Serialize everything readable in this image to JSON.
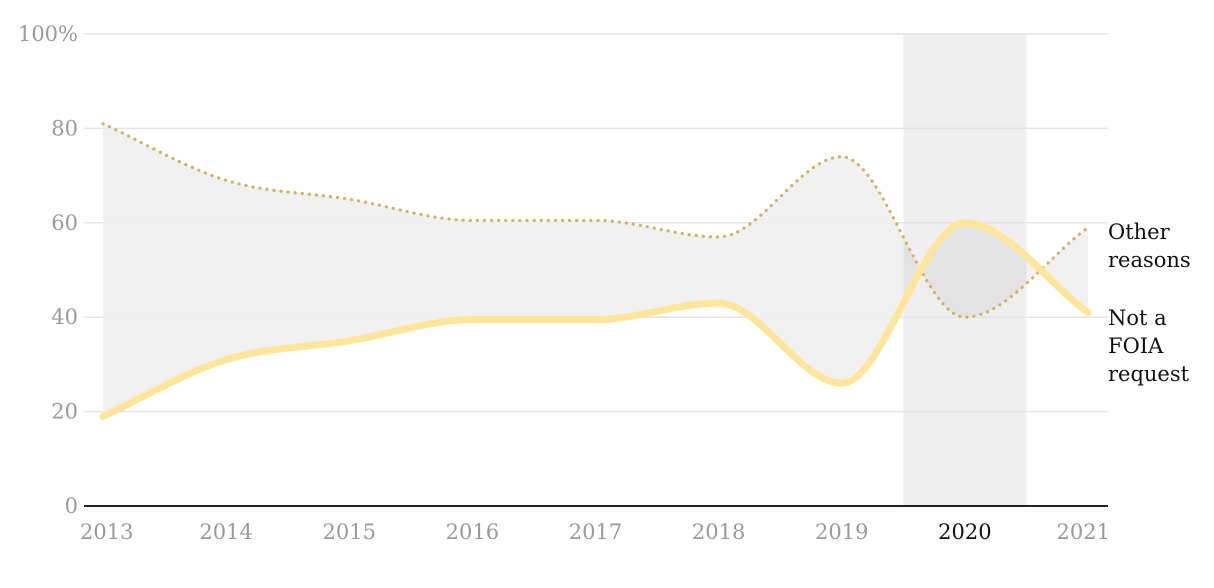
{
  "chart_data": {
    "type": "line",
    "title": "",
    "xlabel": "",
    "ylabel": "",
    "x": [
      "2013",
      "2014",
      "2015",
      "2016",
      "2017",
      "2018",
      "2019",
      "2020",
      "2021"
    ],
    "ylim": [
      0,
      100
    ],
    "y_ticks": [
      0,
      20,
      40,
      60,
      80,
      100
    ],
    "y_tick_labels": [
      "0",
      "20",
      "40",
      "60",
      "80",
      "100%"
    ],
    "highlight_x": "2020",
    "grid": true,
    "series": [
      {
        "name": "Other reasons",
        "style": "dotted",
        "color": "#d4b35f",
        "values": [
          81,
          69,
          65,
          60.5,
          60.5,
          57,
          74,
          40,
          59
        ]
      },
      {
        "name": "Not a FOIA request",
        "style": "solid",
        "color": "#fde69a",
        "values": [
          19,
          31,
          35,
          39.5,
          39.5,
          43,
          26,
          60,
          41
        ]
      }
    ],
    "end_labels": [
      {
        "series": 0,
        "lines": [
          "Other",
          "reasons"
        ]
      },
      {
        "series": 1,
        "lines": [
          "Not a",
          "FOIA",
          "request"
        ]
      }
    ],
    "colors": {
      "band_fill": "#efefef",
      "highlight_fill": "#e3e3e3",
      "grid": "#e4e4e4",
      "axis": "#222222",
      "tick_text": "#9a9a9a",
      "highlight_text": "#111111"
    }
  }
}
